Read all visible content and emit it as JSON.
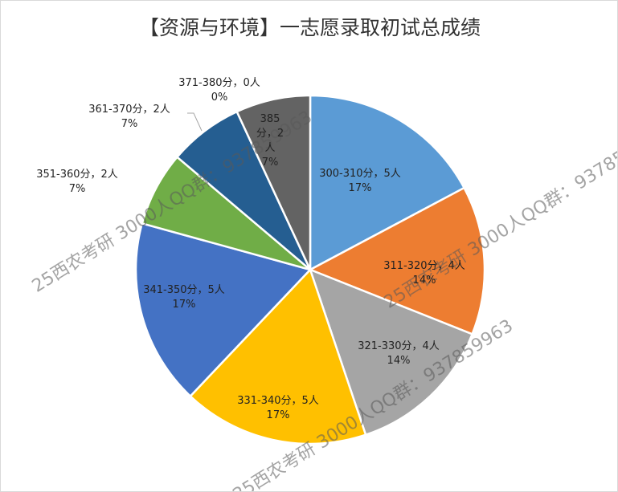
{
  "chart_data": {
    "type": "pie",
    "title": "【资源与环境】一志愿录取初试总成绩",
    "watermark": "25西农考研 3000人QQ群：937859963",
    "categories": [
      "300-310分，5人",
      "311-320分，4人",
      "321-330分，4人",
      "331-340分，5人",
      "341-350分，5人",
      "351-360分，2人",
      "361-370分，2人",
      "371-380分，0人",
      "385分，2人"
    ],
    "values": [
      17.2,
      13.8,
      13.8,
      17.2,
      17.2,
      6.9,
      6.9,
      0,
      6.9
    ],
    "value_labels": [
      "17%",
      "14%",
      "14%",
      "17%",
      "17%",
      "7%",
      "7%",
      "0%",
      "7%"
    ],
    "colors": [
      "#5b9bd5",
      "#ed7d31",
      "#a5a5a5",
      "#ffc000",
      "#4472c4",
      "#70ad47",
      "#255e91",
      "#9e480e",
      "#636363"
    ]
  }
}
